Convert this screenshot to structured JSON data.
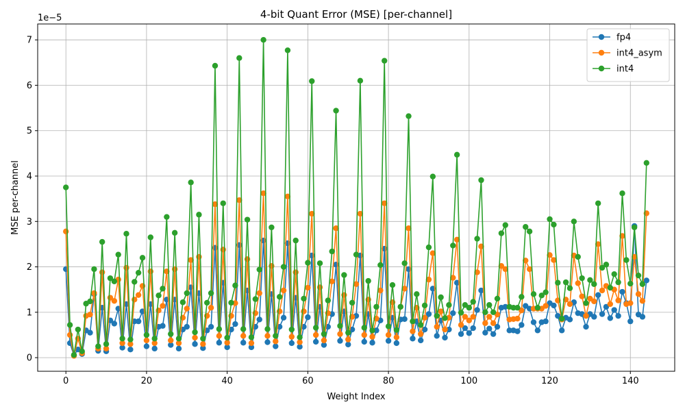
{
  "chart_data": {
    "type": "line",
    "title": "4-bit Quant Error (MSE) [per-channel]",
    "xlabel": "Weight Index",
    "ylabel": "MSE per-channel",
    "offset_label": "1e−5",
    "xlim": [
      -7,
      151
    ],
    "ylim": [
      -0.3,
      7.35
    ],
    "xticks": [
      0,
      20,
      40,
      60,
      80,
      100,
      120,
      140
    ],
    "yticks": [
      0,
      1,
      2,
      3,
      4,
      5,
      6,
      7
    ],
    "grid": true,
    "legend_position": "top-right",
    "series": [
      {
        "name": "fp4",
        "color": "#1f77b4",
        "values": [
          1.95,
          0.32,
          0.05,
          0.18,
          0.08,
          0.6,
          0.55,
          1.4,
          0.15,
          1.1,
          0.14,
          0.82,
          0.75,
          1.08,
          0.22,
          1.18,
          0.18,
          0.8,
          0.8,
          1.02,
          0.25,
          1.18,
          0.2,
          0.68,
          0.7,
          1.28,
          0.28,
          1.28,
          0.2,
          0.62,
          0.68,
          1.55,
          0.3,
          1.42,
          0.21,
          0.6,
          0.68,
          2.42,
          0.33,
          1.65,
          0.23,
          0.62,
          0.74,
          2.48,
          0.33,
          1.48,
          0.23,
          0.68,
          0.84,
          2.58,
          0.34,
          1.4,
          0.25,
          0.68,
          0.88,
          2.52,
          0.32,
          1.32,
          0.24,
          0.68,
          0.89,
          2.25,
          0.35,
          1.12,
          0.28,
          0.68,
          0.96,
          2.05,
          0.37,
          1.02,
          0.29,
          0.62,
          0.92,
          2.25,
          0.35,
          0.96,
          0.33,
          0.6,
          0.82,
          2.4,
          0.37,
          0.88,
          0.32,
          0.84,
          0.85,
          1.95,
          0.42,
          0.8,
          0.38,
          0.62,
          0.96,
          1.52,
          0.48,
          0.82,
          0.44,
          0.62,
          0.98,
          1.65,
          0.52,
          0.65,
          0.54,
          0.65,
          1.05,
          1.48,
          0.55,
          0.64,
          0.52,
          0.68,
          1.1,
          1.12,
          0.6,
          0.6,
          0.58,
          0.72,
          1.14,
          1.08,
          0.78,
          0.6,
          0.78,
          0.8,
          1.2,
          1.15,
          0.92,
          0.6,
          0.88,
          0.84,
          1.22,
          0.98,
          0.96,
          0.68,
          0.96,
          0.9,
          1.38,
          0.96,
          1.12,
          0.87,
          1.05,
          0.92,
          1.45,
          1.2,
          0.8,
          2.9,
          0.95,
          0.9,
          1.7
        ]
      },
      {
        "name": "int4_asym",
        "color": "#ff7f0e",
        "values": [
          2.78,
          0.5,
          0.04,
          0.42,
          0.1,
          0.92,
          0.95,
          1.42,
          0.2,
          1.88,
          0.2,
          1.32,
          1.25,
          1.72,
          0.32,
          1.98,
          0.3,
          1.28,
          1.38,
          1.58,
          0.38,
          1.9,
          0.32,
          1.04,
          1.14,
          1.9,
          0.38,
          1.95,
          0.32,
          0.88,
          1.08,
          2.15,
          0.44,
          2.22,
          0.3,
          0.92,
          1.1,
          3.38,
          0.48,
          2.38,
          0.33,
          0.92,
          1.2,
          3.47,
          0.48,
          2.17,
          0.32,
          0.98,
          1.42,
          3.62,
          0.48,
          2.02,
          0.36,
          1.02,
          1.48,
          3.55,
          0.46,
          1.88,
          0.34,
          1.02,
          1.54,
          3.17,
          0.5,
          1.55,
          0.38,
          0.98,
          1.68,
          2.85,
          0.52,
          1.38,
          0.4,
          0.9,
          1.62,
          3.17,
          0.5,
          1.28,
          0.46,
          0.86,
          1.48,
          3.4,
          0.5,
          1.22,
          0.45,
          1.12,
          1.52,
          2.85,
          0.58,
          1.1,
          0.52,
          0.88,
          1.72,
          2.3,
          0.68,
          1.02,
          0.62,
          0.88,
          1.76,
          2.6,
          0.72,
          0.9,
          0.82,
          0.9,
          1.88,
          2.45,
          0.76,
          0.9,
          0.76,
          0.95,
          2.02,
          1.95,
          0.84,
          0.85,
          0.86,
          1.04,
          2.14,
          1.95,
          1.08,
          1.08,
          1.08,
          1.14,
          2.26,
          2.15,
          1.26,
          0.84,
          1.28,
          1.18,
          2.25,
          1.64,
          1.35,
          0.92,
          1.3,
          1.24,
          2.5,
          1.48,
          1.58,
          1.18,
          1.5,
          1.26,
          2.68,
          1.18,
          1.2,
          2.22,
          1.4,
          1.25,
          3.18
        ]
      },
      {
        "name": "int4",
        "color": "#2ca02c",
        "values": [
          3.75,
          0.72,
          0.06,
          0.62,
          0.14,
          1.19,
          1.24,
          1.95,
          0.25,
          2.55,
          0.3,
          1.75,
          1.68,
          2.27,
          0.42,
          2.73,
          0.4,
          1.67,
          1.87,
          2.2,
          0.5,
          2.65,
          0.42,
          1.37,
          1.52,
          3.1,
          0.52,
          2.75,
          0.42,
          1.22,
          1.42,
          3.86,
          0.56,
          3.15,
          0.42,
          1.21,
          1.42,
          6.43,
          0.63,
          3.4,
          0.44,
          1.21,
          1.59,
          6.6,
          0.63,
          3.04,
          0.45,
          1.29,
          1.94,
          7.0,
          0.63,
          2.87,
          0.48,
          1.34,
          2.0,
          6.77,
          0.62,
          2.58,
          0.45,
          1.3,
          2.09,
          6.09,
          0.66,
          2.08,
          0.52,
          1.26,
          2.34,
          5.44,
          0.7,
          1.82,
          0.55,
          1.21,
          2.27,
          6.1,
          0.66,
          1.69,
          0.6,
          1.12,
          2.04,
          6.54,
          0.69,
          1.6,
          0.61,
          1.12,
          2.08,
          5.32,
          0.8,
          1.4,
          0.72,
          1.15,
          2.43,
          3.99,
          0.92,
          1.33,
          0.87,
          1.16,
          2.47,
          4.47,
          0.99,
          1.16,
          1.1,
          1.23,
          2.62,
          3.91,
          1.0,
          1.16,
          1.0,
          1.3,
          2.74,
          2.92,
          1.12,
          1.1,
          1.1,
          1.34,
          2.88,
          2.78,
          1.4,
          1.1,
          1.37,
          1.44,
          3.05,
          2.93,
          1.65,
          0.86,
          1.66,
          1.53,
          3.0,
          2.22,
          1.75,
          1.2,
          1.71,
          1.62,
          3.4,
          1.98,
          2.05,
          1.54,
          1.84,
          1.66,
          3.62,
          2.15,
          1.63,
          2.87,
          1.81,
          1.62,
          4.29
        ]
      }
    ]
  }
}
